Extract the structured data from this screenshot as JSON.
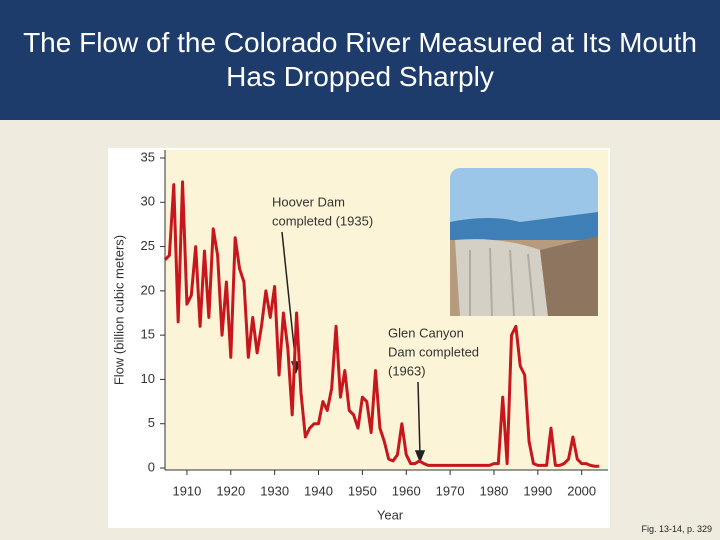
{
  "header": {
    "title": "The Flow of the Colorado River Measured at Its Mouth Has Dropped Sharply"
  },
  "footnote": "Fig. 13-14, p. 329",
  "chart_data": {
    "type": "line",
    "xlabel": "Year",
    "ylabel": "Flow (billion cubic meters)",
    "x": [
      1905,
      1906,
      1907,
      1908,
      1909,
      1910,
      1911,
      1912,
      1913,
      1914,
      1915,
      1916,
      1917,
      1918,
      1919,
      1920,
      1921,
      1922,
      1923,
      1924,
      1925,
      1926,
      1927,
      1928,
      1929,
      1930,
      1931,
      1932,
      1933,
      1934,
      1935,
      1936,
      1937,
      1938,
      1939,
      1940,
      1941,
      1942,
      1943,
      1944,
      1945,
      1946,
      1947,
      1948,
      1949,
      1950,
      1951,
      1952,
      1953,
      1954,
      1955,
      1956,
      1957,
      1958,
      1959,
      1960,
      1961,
      1962,
      1963,
      1964,
      1965,
      1966,
      1967,
      1968,
      1969,
      1970,
      1971,
      1972,
      1973,
      1974,
      1975,
      1976,
      1977,
      1978,
      1979,
      1980,
      1981,
      1982,
      1983,
      1984,
      1985,
      1986,
      1987,
      1988,
      1989,
      1990,
      1991,
      1992,
      1993,
      1994,
      1995,
      1996,
      1997,
      1998,
      1999,
      2000,
      2001,
      2002,
      2003,
      2004
    ],
    "series": [
      {
        "name": "Flow",
        "color": "#c8161d",
        "values": [
          23.5,
          24,
          32,
          16.5,
          32.3,
          18.5,
          19.5,
          25,
          16,
          24.5,
          17,
          27,
          24,
          15,
          21,
          12.5,
          26,
          22.5,
          21,
          12.5,
          17,
          13,
          16,
          20,
          17,
          20.5,
          10.5,
          17.5,
          13.5,
          6,
          17.5,
          8.5,
          3.5,
          4.5,
          5,
          5,
          7.5,
          6.5,
          9,
          16,
          8,
          11,
          6.5,
          6,
          4.5,
          8,
          7.5,
          4,
          11,
          4.5,
          3,
          1,
          0.8,
          1.5,
          5,
          1.5,
          0.5,
          0.5,
          0.8,
          0.5,
          0.3,
          0.3,
          0.3,
          0.3,
          0.3,
          0.3,
          0.3,
          0.3,
          0.3,
          0.3,
          0.3,
          0.3,
          0.3,
          0.3,
          0.3,
          0.5,
          0.5,
          8,
          0.5,
          15,
          16,
          11.5,
          10.5,
          3,
          0.5,
          0.3,
          0.3,
          0.3,
          4.5,
          0.3,
          0.3,
          0.5,
          1,
          3.5,
          1,
          0.5,
          0.5,
          0.3,
          0.2,
          0.2
        ]
      }
    ],
    "xlim": [
      1905,
      2006
    ],
    "xticks": [
      1910,
      1920,
      1930,
      1940,
      1950,
      1960,
      1970,
      1980,
      1990,
      2000
    ],
    "ylim": [
      0,
      35
    ],
    "yticks": [
      0,
      5,
      10,
      15,
      20,
      25,
      30,
      35
    ],
    "annotations": [
      {
        "lines": [
          "Hoover Dam",
          "completed (1935)"
        ]
      },
      {
        "lines": [
          "Glen Canyon",
          "Dam completed",
          "(1963)"
        ]
      }
    ]
  }
}
